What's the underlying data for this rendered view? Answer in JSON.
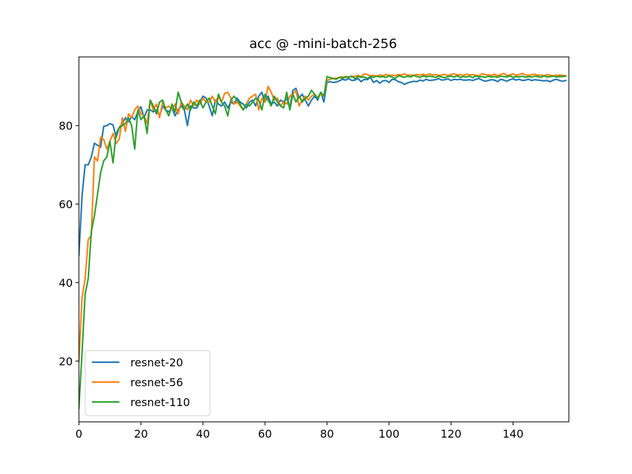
{
  "chart_data": {
    "type": "line",
    "title": "acc @ -mini-batch-256",
    "xlabel": "",
    "ylabel": "",
    "xlim": [
      0,
      158
    ],
    "ylim": [
      4.5,
      97.5
    ],
    "xticks": [
      0,
      20,
      40,
      60,
      80,
      100,
      120,
      140
    ],
    "yticks": [
      20,
      40,
      60,
      80
    ],
    "grid": false,
    "legend_position": "lower-left",
    "series": [
      {
        "name": "resnet-20",
        "color": "#1f77b4",
        "values": [
          47,
          62,
          70,
          70,
          72,
          75.5,
          75,
          74.5,
          79.8,
          80,
          80.5,
          80.2,
          77,
          79.5,
          80.5,
          82,
          81,
          82.3,
          81.5,
          83.5,
          84.8,
          82,
          84,
          84,
          83.5,
          84,
          82.5,
          85,
          84,
          83.5,
          84.5,
          82.5,
          84,
          85,
          84,
          80,
          85,
          84.5,
          84.5,
          86,
          87.5,
          87,
          85,
          82.5,
          86.5,
          85.5,
          85,
          86,
          84.5,
          86,
          85.5,
          87,
          86,
          85.5,
          84.5,
          86,
          86.5,
          85,
          87.5,
          88.5,
          86,
          87.5,
          85.5,
          86,
          85,
          86.5,
          86,
          87,
          84.5,
          89,
          89.5,
          87,
          88,
          86.5,
          85,
          86.5,
          87.5,
          86.5,
          88.5,
          86,
          91,
          91.2,
          91,
          91.1,
          91.4,
          91.8,
          91.6,
          92,
          91.5,
          91.6,
          92,
          91.2,
          91.8,
          91.7,
          92.3,
          91,
          91.5,
          90.8,
          91.4,
          91.5,
          91,
          91.8,
          91.7,
          91.2,
          91,
          90.5,
          90.9,
          91.1,
          91.3,
          91.2,
          91.6,
          91.4,
          91.8,
          91.5,
          91.6,
          91.7,
          92,
          91.6,
          91.7,
          91.9,
          91.5,
          91.8,
          91.7,
          91.8,
          91.6,
          91.6,
          91.7,
          91.5,
          91.8,
          92,
          91.6,
          91.3,
          91.5,
          91.7,
          91.6,
          91.2,
          91.8,
          91.6,
          91.3,
          91.7,
          91.9,
          91.6,
          91.8,
          91.5,
          91.6,
          91.8,
          91.5,
          91.7,
          91.6,
          91.5,
          91.4,
          91.5,
          91.2,
          91.6,
          91.8,
          91.5,
          91.3,
          91.5
        ]
      },
      {
        "name": "resnet-56",
        "color": "#ff7f0e",
        "values": [
          20,
          36,
          41,
          51,
          52,
          72,
          71,
          77,
          76.5,
          74,
          76,
          78,
          75.5,
          76.5,
          82,
          78.5,
          83,
          82,
          84,
          85,
          83,
          82.5,
          80.5,
          86.5,
          84,
          85.5,
          82,
          86,
          84.5,
          85,
          84,
          85.5,
          83,
          86,
          85,
          84,
          86.5,
          85,
          86.5,
          85.5,
          87,
          86,
          86,
          87.5,
          86,
          87.5,
          86,
          88.2,
          88.5,
          87,
          85.5,
          86,
          85,
          84,
          85.5,
          87,
          87.5,
          88,
          84,
          87,
          86,
          90,
          88.5,
          86.5,
          87,
          85,
          86,
          85.5,
          87.5,
          88,
          89,
          85,
          86.5,
          87.5,
          86.5,
          87.5,
          88,
          87,
          88,
          87.5,
          91.5,
          91.8,
          92,
          92.1,
          92.3,
          92.5,
          92.2,
          92.5,
          92.4,
          92.6,
          92.8,
          92.5,
          93.2,
          93,
          92.7,
          92.8,
          92.6,
          92.9,
          92.7,
          93,
          92.8,
          92.9,
          92.7,
          93,
          92.9,
          93.2,
          92.8,
          92.9,
          92.8,
          93,
          92.9,
          93.1,
          92.8,
          93.2,
          92.9,
          93,
          92.8,
          92.9,
          93.1,
          92.7,
          93,
          93.2,
          92.9,
          93,
          92.8,
          93.1,
          92.9,
          93,
          92.8,
          92.7,
          93.2,
          93,
          92.9,
          92.8,
          93.1,
          92.7,
          93,
          93.3,
          92.8,
          92.9,
          93.2,
          92.8,
          93,
          93.3,
          92.9,
          92.8,
          93,
          93.1,
          92.8,
          92.9,
          92.7,
          93,
          92.8,
          92.7,
          92.8,
          92.9,
          92.8,
          92.7
        ]
      },
      {
        "name": "resnet-110",
        "color": "#2ca02c",
        "values": [
          8,
          22,
          37,
          41,
          53,
          57,
          62.5,
          68,
          71,
          72,
          76,
          70.5,
          78,
          79.5,
          80,
          80.5,
          82,
          80,
          74,
          84,
          81.5,
          82.5,
          78,
          86.5,
          85,
          83,
          86,
          86.5,
          84,
          82.5,
          85.5,
          83.5,
          88.5,
          86,
          84,
          85.5,
          84,
          86,
          85,
          86.5,
          84.5,
          86,
          87,
          85,
          83,
          88,
          86,
          85,
          82.5,
          86.5,
          87.5,
          86.5,
          85.5,
          84,
          85.5,
          85,
          86,
          87,
          86.5,
          84,
          88,
          86.5,
          85,
          87.5,
          86,
          85,
          84.5,
          88.5,
          84,
          88,
          86,
          87.5,
          86,
          87,
          87.5,
          89,
          88,
          87,
          88.5,
          87.5,
          92.5,
          92.2,
          92,
          91.8,
          92.3,
          92,
          92.5,
          92.3,
          92.6,
          92,
          92.5,
          92.3,
          92.4,
          92,
          92.5,
          92.3,
          92.6,
          92.4,
          92.5,
          92.3,
          92.6,
          92.4,
          92,
          92.7,
          92.5,
          92.3,
          92.6,
          92.4,
          92.8,
          92.5,
          92.3,
          92.7,
          92.4,
          92.6,
          92.5,
          92.3,
          92.6,
          92.4,
          92.2,
          92.5,
          92.6,
          92.4,
          92.7,
          92.3,
          92.5,
          92.4,
          92.6,
          92.2,
          92.7,
          92.4,
          92.5,
          92.3,
          92.6,
          92.4,
          92.5,
          92.3,
          92.6,
          92.5,
          92.4,
          92.7,
          92.3,
          92.5,
          92.4,
          92.6,
          92.3,
          92.5,
          92.4,
          92.6,
          92.5,
          92.3,
          92.7,
          92.4,
          92.5,
          92.6,
          92.4,
          92.5,
          92.5,
          92.6
        ]
      }
    ]
  }
}
